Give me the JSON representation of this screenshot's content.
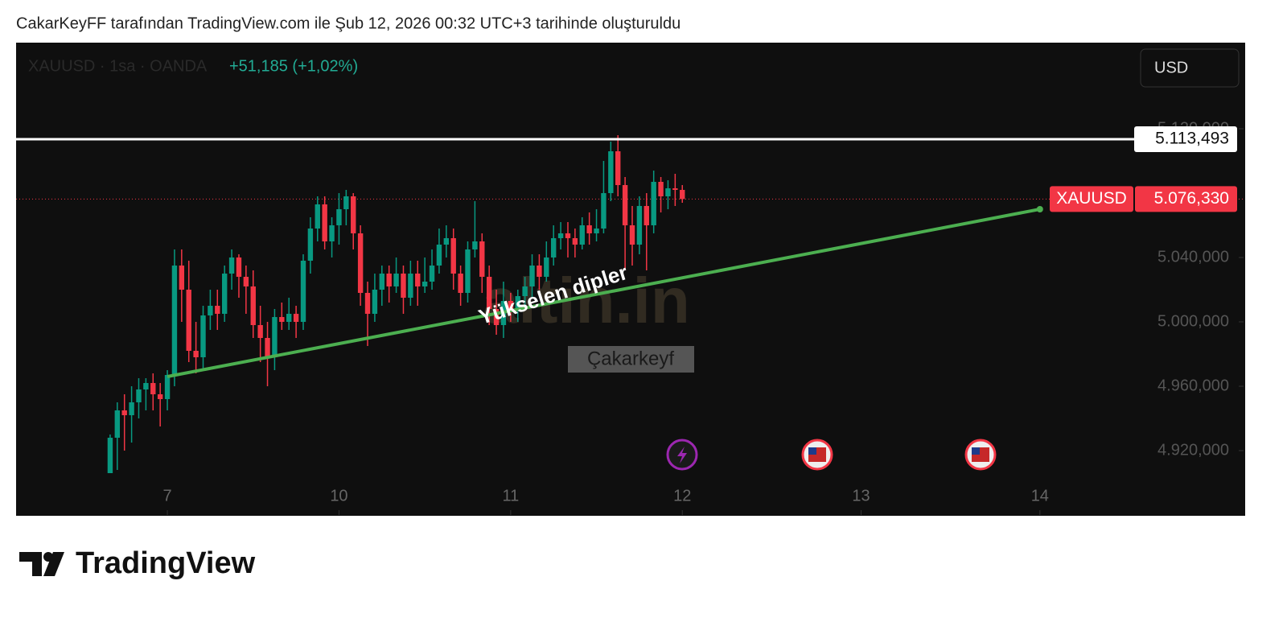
{
  "header": {
    "title": "CakarKeyFF tarafından TradingView.com ile Şub 12, 2026 00:32 UTC+3 tarihinde oluşturuldu"
  },
  "footer": {
    "brand": "TradingView"
  },
  "chart_data": {
    "type": "candlestick",
    "symbol": "XAUUSD · 1sa · OANDA",
    "change": "+51,185 (+1,02%)",
    "currency": "USD",
    "watermark": "altin.in",
    "author_label": "Çakarkeyf",
    "up_color": "#089981",
    "down_color": "#f23645",
    "xlim": [
      -21.15,
      150.7
    ],
    "ylim": [
      4880,
      5172.5
    ],
    "xticks": [
      {
        "value": 0,
        "label": "7"
      },
      {
        "value": 24,
        "label": "10"
      },
      {
        "value": 48,
        "label": "11"
      },
      {
        "value": 72,
        "label": "12"
      },
      {
        "value": 97,
        "label": "13"
      },
      {
        "value": 122,
        "label": "14"
      }
    ],
    "yticks": [
      {
        "value": 5120,
        "label": "5.120,000"
      },
      {
        "value": 5040,
        "label": "5.040,000"
      },
      {
        "value": 5000,
        "label": "5.000,000"
      },
      {
        "value": 4960,
        "label": "4.960,000"
      },
      {
        "value": 4920,
        "label": "4.920,000"
      }
    ],
    "x": [
      -8,
      -7,
      -6,
      -5,
      -4,
      -3,
      -2,
      -1,
      0,
      1,
      2,
      3,
      4,
      5,
      6,
      7,
      8,
      9,
      10,
      11,
      12,
      13,
      14,
      15,
      16,
      17,
      18,
      19,
      20,
      21,
      22,
      23,
      24,
      25,
      26,
      27,
      28,
      29,
      30,
      31,
      32,
      33,
      34,
      35,
      36,
      37,
      38,
      39,
      40,
      41,
      42,
      43,
      44,
      45,
      46,
      47,
      48,
      49,
      50,
      51,
      52,
      53,
      54,
      55,
      56,
      57,
      58,
      59,
      60,
      61,
      62,
      63,
      64,
      65,
      66,
      67,
      68,
      69,
      70,
      71,
      72
    ],
    "open": [
      4906,
      4928,
      4945,
      4942,
      4950,
      4958,
      4962,
      4955,
      4952,
      4967,
      5035,
      5020,
      4982,
      4978,
      5004,
      5010,
      5005,
      5030,
      5040,
      5028,
      5022,
      4998,
      4990,
      4978,
      5003,
      5000,
      5005,
      5000,
      5038,
      5058,
      5073,
      5050,
      5060,
      5070,
      5078,
      5055,
      5018,
      5005,
      5020,
      5030,
      5022,
      5030,
      5015,
      5030,
      5022,
      5025,
      5035,
      5048,
      5052,
      5030,
      5018,
      5045,
      5050,
      5028,
      5008,
      4998,
      5013,
      5008,
      5016,
      5022,
      5035,
      5028,
      5040,
      5052,
      5055,
      5052,
      5048,
      5060,
      5055,
      5058,
      5080,
      5106,
      5085,
      5060,
      5048,
      5072,
      5060,
      5087,
      5078,
      5083,
      5082
    ],
    "high": [
      4930,
      4950,
      4955,
      4960,
      4965,
      4965,
      4968,
      4962,
      4970,
      5045,
      5045,
      5038,
      5000,
      5010,
      5020,
      5020,
      5035,
      5045,
      5042,
      5035,
      5032,
      5010,
      5000,
      5008,
      5012,
      5015,
      5010,
      5042,
      5065,
      5078,
      5078,
      5065,
      5080,
      5082,
      5080,
      5060,
      5025,
      5030,
      5035,
      5035,
      5040,
      5035,
      5038,
      5038,
      5040,
      5045,
      5058,
      5060,
      5058,
      5035,
      5050,
      5075,
      5055,
      5035,
      5020,
      5025,
      5018,
      5020,
      5028,
      5042,
      5042,
      5050,
      5060,
      5062,
      5062,
      5058,
      5065,
      5068,
      5070,
      5100,
      5112,
      5116,
      5090,
      5072,
      5078,
      5080,
      5094,
      5090,
      5088,
      5092,
      5085
    ],
    "low": [
      4906,
      4908,
      4920,
      4925,
      4940,
      4945,
      4945,
      4935,
      4945,
      4960,
      5000,
      4975,
      4968,
      4970,
      4995,
      4995,
      5000,
      5020,
      5015,
      5005,
      4990,
      4975,
      4960,
      4970,
      4995,
      4995,
      4990,
      4995,
      5030,
      5050,
      5045,
      5040,
      5048,
      5060,
      5045,
      5010,
      4985,
      5000,
      5010,
      5012,
      5018,
      5005,
      5010,
      5010,
      5018,
      5020,
      5030,
      5040,
      5020,
      5010,
      5012,
      5040,
      5018,
      4998,
      4992,
      4990,
      5000,
      5000,
      5010,
      5015,
      5020,
      5025,
      5035,
      5045,
      5040,
      5040,
      5045,
      5048,
      5050,
      5055,
      5075,
      5078,
      5032,
      5035,
      5042,
      5032,
      5055,
      5068,
      5070,
      5072,
      5074
    ],
    "close": [
      4928,
      4945,
      4942,
      4950,
      4958,
      4962,
      4955,
      4952,
      4967,
      5035,
      5020,
      4982,
      4978,
      5004,
      5010,
      5005,
      5030,
      5040,
      5028,
      5022,
      4998,
      4990,
      4978,
      5003,
      5000,
      5005,
      5000,
      5038,
      5058,
      5073,
      5050,
      5060,
      5070,
      5078,
      5055,
      5018,
      5005,
      5020,
      5030,
      5022,
      5030,
      5015,
      5030,
      5022,
      5025,
      5035,
      5048,
      5052,
      5030,
      5018,
      5045,
      5050,
      5028,
      5008,
      4998,
      5013,
      5008,
      5016,
      5022,
      5035,
      5028,
      5040,
      5052,
      5055,
      5052,
      5048,
      5060,
      5055,
      5058,
      5080,
      5106,
      5085,
      5060,
      5048,
      5072,
      5060,
      5087,
      5078,
      5083,
      5082,
      5076.33
    ],
    "horizontal_line": {
      "value": 5113.493,
      "label": "5.113,493"
    },
    "price_line": {
      "name": "XAUUSD",
      "value": 5076.33,
      "label": "5.076,330"
    },
    "trend_line": {
      "x": [
        0,
        122
      ],
      "y": [
        4966,
        5070
      ],
      "label": "Yükselen dipler"
    }
  }
}
